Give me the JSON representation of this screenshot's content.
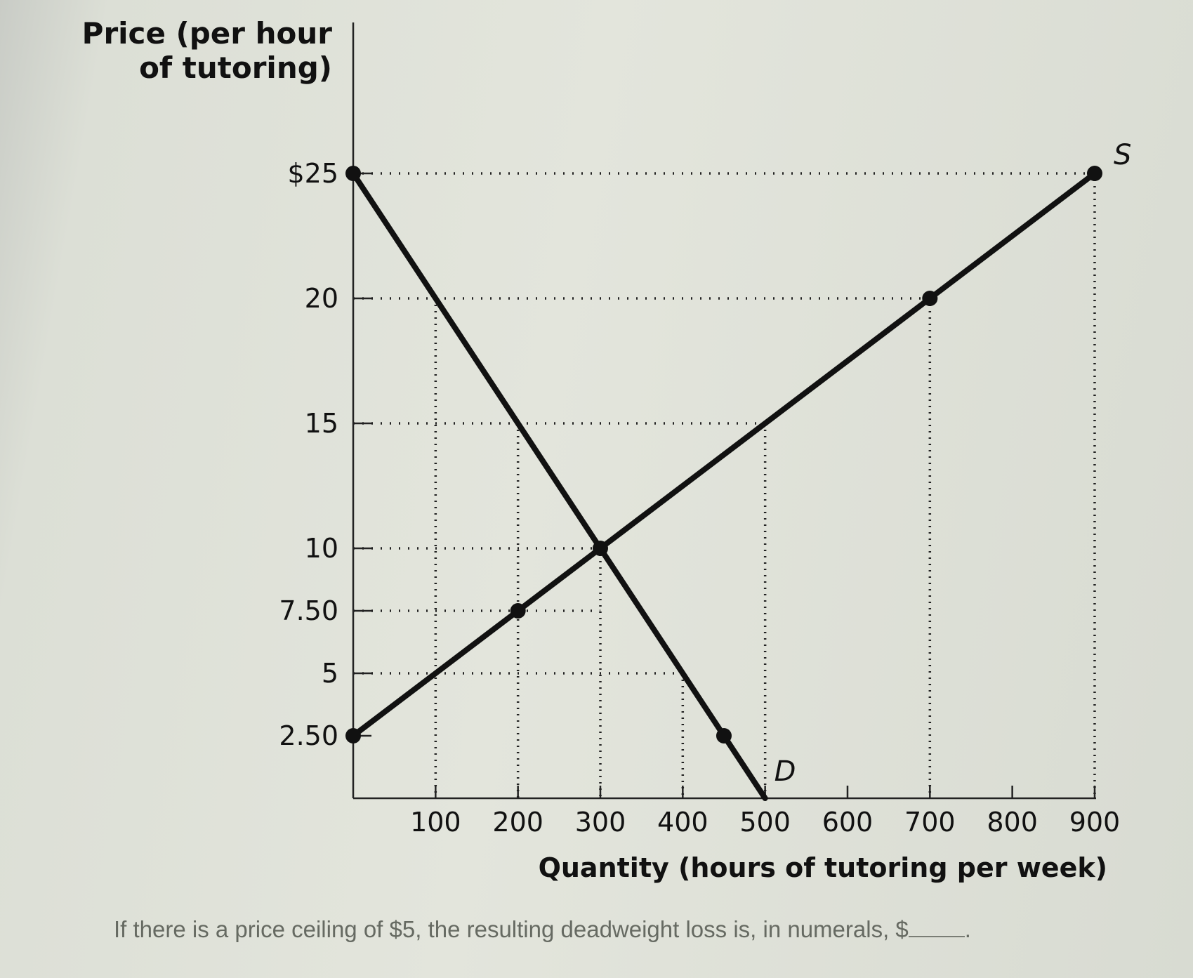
{
  "chart_data": {
    "type": "line",
    "ylabel": [
      "Price (per hour",
      "of tutoring)"
    ],
    "xlabel": "Quantity (hours of tutoring per week)",
    "xlim": [
      0,
      900
    ],
    "ylim": [
      0,
      26
    ],
    "x_ticks": [
      100,
      200,
      300,
      400,
      500,
      600,
      700,
      800,
      900
    ],
    "x_tick_labels": [
      "100",
      "200",
      "300",
      "400",
      "500",
      "600",
      "700",
      "800",
      "900"
    ],
    "y_ticks": [
      25,
      20,
      15,
      10,
      7.5,
      5,
      2.5
    ],
    "y_tick_labels": [
      "$25",
      "20",
      "15",
      "10",
      "7.50",
      "5",
      "2.50"
    ],
    "series": [
      {
        "name": "D",
        "x": [
          0,
          450,
          500
        ],
        "y": [
          25,
          2.5,
          0
        ],
        "points": [
          [
            0,
            25
          ],
          [
            450,
            2.5
          ]
        ]
      },
      {
        "name": "S",
        "x": [
          0,
          200,
          300,
          700,
          900
        ],
        "y": [
          2.5,
          7.5,
          10,
          20,
          25
        ],
        "points": [
          [
            0,
            2.5
          ],
          [
            200,
            7.5
          ],
          [
            300,
            10
          ],
          [
            700,
            20
          ],
          [
            900,
            25
          ]
        ]
      }
    ],
    "guides_h": [
      {
        "y": 25,
        "x_end": 900
      },
      {
        "y": 20,
        "x_end": 700
      },
      {
        "y": 15,
        "x_end": 500
      },
      {
        "y": 10,
        "x_end": 300
      },
      {
        "y": 7.5,
        "x_end": 300
      },
      {
        "y": 5,
        "x_end": 400
      }
    ],
    "guides_v": [
      {
        "x": 100,
        "y_end": 20
      },
      {
        "x": 200,
        "y_end": 15
      },
      {
        "x": 300,
        "y_end": 10
      },
      {
        "x": 400,
        "y_end": 5
      },
      {
        "x": 500,
        "y_end": 15
      },
      {
        "x": 700,
        "y_end": 20
      },
      {
        "x": 900,
        "y_end": 25
      }
    ],
    "grid": false
  },
  "question": {
    "text": "If there is a price ceiling of $5, the resulting deadweight loss is, in numerals, $",
    "suffix": "."
  },
  "colors": {
    "line": "#111111",
    "guide": "#222222"
  }
}
